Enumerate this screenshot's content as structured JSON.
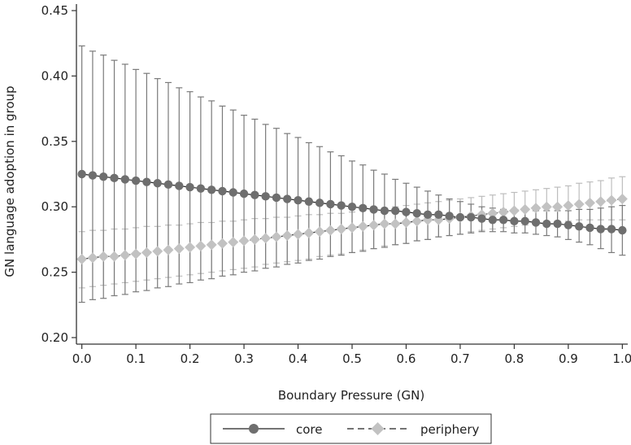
{
  "chart_data": {
    "type": "line",
    "title": "",
    "xlabel": "Boundary Pressure (GN)",
    "ylabel": "GN language adoption in group",
    "xlim": [
      -0.01,
      1.01
    ],
    "ylim": [
      0.195,
      0.455
    ],
    "xticks": [
      "0.0",
      "0.1",
      "0.2",
      "0.3",
      "0.4",
      "0.5",
      "0.6",
      "0.7",
      "0.8",
      "0.9",
      "1.0"
    ],
    "yticks": [
      "0.20",
      "0.25",
      "0.30",
      "0.35",
      "0.40",
      "0.45"
    ],
    "grid": false,
    "legend_position": "bottom",
    "x": [
      0.0,
      0.02,
      0.04,
      0.06,
      0.08,
      0.1,
      0.12,
      0.14,
      0.16,
      0.18,
      0.2,
      0.22,
      0.24,
      0.26,
      0.28,
      0.3,
      0.32,
      0.34,
      0.36,
      0.38,
      0.4,
      0.42,
      0.44,
      0.46,
      0.48,
      0.5,
      0.52,
      0.54,
      0.56,
      0.58,
      0.6,
      0.62,
      0.64,
      0.66,
      0.68,
      0.7,
      0.72,
      0.74,
      0.76,
      0.78,
      0.8,
      0.82,
      0.84,
      0.86,
      0.88,
      0.9,
      0.92,
      0.94,
      0.96,
      0.98,
      1.0
    ],
    "series": [
      {
        "name": "core",
        "color": "#6e6e6e",
        "errorbar_color": "#7a7a7a",
        "marker": "circle",
        "line_style": "solid",
        "values": [
          0.325,
          0.324,
          0.323,
          0.322,
          0.321,
          0.32,
          0.319,
          0.318,
          0.317,
          0.316,
          0.315,
          0.314,
          0.313,
          0.312,
          0.311,
          0.31,
          0.309,
          0.308,
          0.307,
          0.306,
          0.305,
          0.304,
          0.303,
          0.302,
          0.301,
          0.3,
          0.299,
          0.298,
          0.297,
          0.297,
          0.296,
          0.295,
          0.294,
          0.294,
          0.293,
          0.292,
          0.292,
          0.291,
          0.29,
          0.29,
          0.289,
          0.289,
          0.288,
          0.287,
          0.287,
          0.286,
          0.285,
          0.284,
          0.283,
          0.283,
          0.282
        ],
        "upper": [
          0.423,
          0.419,
          0.416,
          0.412,
          0.409,
          0.405,
          0.402,
          0.398,
          0.395,
          0.391,
          0.388,
          0.384,
          0.381,
          0.377,
          0.374,
          0.37,
          0.367,
          0.363,
          0.36,
          0.356,
          0.353,
          0.349,
          0.346,
          0.342,
          0.339,
          0.335,
          0.332,
          0.328,
          0.325,
          0.321,
          0.318,
          0.315,
          0.312,
          0.309,
          0.306,
          0.304,
          0.302,
          0.3,
          0.299,
          0.298,
          0.298,
          0.297,
          0.297,
          0.297,
          0.297,
          0.297,
          0.298,
          0.298,
          0.299,
          0.3,
          0.301
        ],
        "lower": [
          0.227,
          0.229,
          0.23,
          0.232,
          0.233,
          0.235,
          0.236,
          0.238,
          0.239,
          0.241,
          0.242,
          0.244,
          0.245,
          0.247,
          0.248,
          0.25,
          0.251,
          0.253,
          0.254,
          0.256,
          0.257,
          0.259,
          0.26,
          0.262,
          0.263,
          0.265,
          0.266,
          0.268,
          0.269,
          0.271,
          0.272,
          0.274,
          0.275,
          0.277,
          0.278,
          0.279,
          0.28,
          0.281,
          0.281,
          0.281,
          0.28,
          0.28,
          0.279,
          0.278,
          0.277,
          0.275,
          0.273,
          0.271,
          0.268,
          0.265,
          0.263
        ]
      },
      {
        "name": "periphery",
        "color": "#c2c2c2",
        "errorbar_color": "#bdbdbd",
        "marker": "diamond",
        "line_style": "dashed",
        "values": [
          0.26,
          0.261,
          0.262,
          0.262,
          0.263,
          0.264,
          0.265,
          0.266,
          0.267,
          0.268,
          0.269,
          0.27,
          0.271,
          0.272,
          0.273,
          0.274,
          0.275,
          0.276,
          0.277,
          0.278,
          0.279,
          0.28,
          0.281,
          0.282,
          0.283,
          0.284,
          0.285,
          0.286,
          0.287,
          0.287,
          0.288,
          0.289,
          0.29,
          0.29,
          0.291,
          0.292,
          0.293,
          0.294,
          0.295,
          0.296,
          0.297,
          0.298,
          0.299,
          0.3,
          0.3,
          0.301,
          0.302,
          0.303,
          0.304,
          0.305,
          0.306
        ],
        "upper": [
          0.281,
          0.282,
          0.282,
          0.283,
          0.283,
          0.284,
          0.285,
          0.285,
          0.286,
          0.286,
          0.287,
          0.288,
          0.288,
          0.289,
          0.289,
          0.29,
          0.291,
          0.291,
          0.292,
          0.292,
          0.293,
          0.294,
          0.294,
          0.295,
          0.295,
          0.296,
          0.297,
          0.298,
          0.299,
          0.3,
          0.301,
          0.302,
          0.303,
          0.304,
          0.305,
          0.306,
          0.307,
          0.308,
          0.309,
          0.31,
          0.311,
          0.312,
          0.313,
          0.314,
          0.315,
          0.316,
          0.318,
          0.319,
          0.32,
          0.322,
          0.323
        ],
        "lower": [
          0.238,
          0.239,
          0.24,
          0.241,
          0.242,
          0.243,
          0.244,
          0.245,
          0.246,
          0.247,
          0.248,
          0.249,
          0.25,
          0.251,
          0.252,
          0.253,
          0.254,
          0.256,
          0.257,
          0.258,
          0.259,
          0.26,
          0.262,
          0.263,
          0.264,
          0.265,
          0.267,
          0.268,
          0.27,
          0.271,
          0.272,
          0.274,
          0.275,
          0.277,
          0.278,
          0.279,
          0.281,
          0.282,
          0.283,
          0.284,
          0.285,
          0.286,
          0.287,
          0.288,
          0.289,
          0.289,
          0.29,
          0.29,
          0.29,
          0.29,
          0.29
        ]
      }
    ]
  }
}
